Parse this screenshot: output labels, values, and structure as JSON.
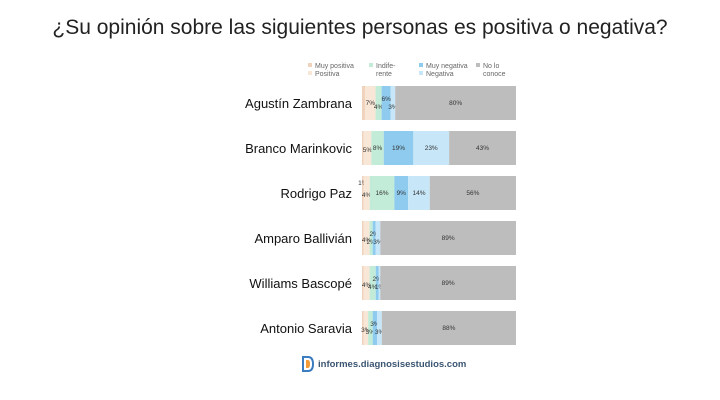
{
  "title": "¿Su opinión sobre las siguientes personas es positiva o negativa?",
  "footer": {
    "text": "informes.diagnosisestudios.com",
    "logo_icon": "diagnosis-logo-icon"
  },
  "chart_data": {
    "type": "bar",
    "orientation": "horizontal",
    "stacked": true,
    "percent_stacked": true,
    "legend_position": "top",
    "categories": [
      "Agustín Zambrana",
      "Branco Marinkovic",
      "Rodrigo Paz",
      "Amparo Ballivián",
      "Williams Bascopé",
      "Antonio Saravia"
    ],
    "series": [
      {
        "name": "Muy positiva",
        "color": "#efd3bd",
        "values": [
          2,
          1,
          1,
          1,
          1,
          1
        ],
        "labels": [
          "",
          "",
          "1%",
          "",
          "",
          ""
        ]
      },
      {
        "name": "Positiva",
        "color": "#f8e6d6",
        "values": [
          7,
          5,
          4,
          4,
          4,
          3
        ],
        "labels": [
          "7%",
          "5%",
          "4%",
          "4%",
          "4%",
          "3%"
        ]
      },
      {
        "name": "Indife-rente",
        "color": "#c3ecd8",
        "values": [
          4,
          8,
          16,
          2,
          4,
          3
        ],
        "labels": [
          "4%",
          "8%",
          "16%",
          "2%",
          "4%",
          "3%"
        ]
      },
      {
        "name": "Muy negativa",
        "color": "#8ecbef",
        "values": [
          6,
          19,
          9,
          2,
          2,
          3
        ],
        "labels": [
          "6%",
          "19%",
          "9%",
          "2%",
          "2%",
          "3%"
        ]
      },
      {
        "name": "Negativa",
        "color": "#c7e7f8",
        "values": [
          3,
          23,
          14,
          3,
          1,
          3
        ],
        "labels": [
          "3%",
          "23%",
          "14%",
          "3%",
          "1%",
          "3%"
        ]
      },
      {
        "name": "No lo conoce",
        "color": "#bdbdbd",
        "values": [
          80,
          43,
          56,
          89,
          89,
          88
        ],
        "labels": [
          "80%",
          "43%",
          "56%",
          "89%",
          "89%",
          "88%"
        ]
      }
    ]
  }
}
